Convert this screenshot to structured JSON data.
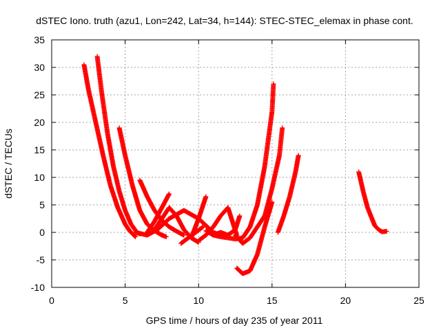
{
  "chart_data": {
    "type": "scatter",
    "title": "dSTEC Iono. truth (azu1, Lon=242, Lat=34, h=144): STEC-STEC_elemax in phase cont.",
    "xlabel": "GPS time / hours of day 235 of year 2011",
    "ylabel": "dSTEC  / TECUs",
    "xlim": [
      0,
      25
    ],
    "ylim": [
      -10,
      35
    ],
    "xticks": [
      "0",
      "5",
      "10",
      "15",
      "20",
      "25"
    ],
    "yticks": [
      "-10",
      "-5",
      "0",
      "5",
      "10",
      "15",
      "20",
      "25",
      "30",
      "35"
    ],
    "grid": true,
    "marker": "+",
    "color": "#ff0000",
    "series": [
      {
        "x": [
          2.2,
          2.5,
          3.0,
          3.5,
          4.0,
          4.5,
          5.0,
          5.3,
          5.7
        ],
        "y": [
          30.5,
          26,
          20,
          14,
          8.5,
          4.5,
          1.5,
          0.3,
          -0.8
        ]
      },
      {
        "x": [
          3.1,
          3.4,
          3.8,
          4.2,
          4.6,
          5.0,
          5.4,
          5.8,
          6.0
        ],
        "y": [
          32,
          25.5,
          18,
          12,
          7.5,
          4,
          1.5,
          0,
          -0.3
        ]
      },
      {
        "x": [
          4.6,
          5.0,
          5.5,
          6.0,
          6.5,
          7.0,
          7.5,
          7.8
        ],
        "y": [
          19,
          14,
          8.5,
          4,
          1.5,
          0.3,
          -0.5,
          -0.8
        ]
      },
      {
        "x": [
          6.0,
          6.5,
          7.0,
          7.5,
          8.0,
          8.5,
          9.0
        ],
        "y": [
          9.5,
          6.5,
          4,
          2.2,
          1,
          0.2,
          -0.5
        ]
      },
      {
        "x": [
          5.7,
          6.5,
          7.2,
          8.0,
          9.0,
          10.0,
          11.0,
          11.8
        ],
        "y": [
          0,
          -0.5,
          0.5,
          2.5,
          4,
          2.5,
          0,
          -0.8
        ]
      },
      {
        "x": [
          6.5,
          7.0,
          7.5,
          8.0
        ],
        "y": [
          0,
          2,
          4.5,
          7
        ]
      },
      {
        "x": [
          7.0,
          7.5,
          8.0,
          8.5,
          9.0,
          9.5,
          10.0
        ],
        "y": [
          0.5,
          2.5,
          4.5,
          3,
          0.5,
          -1,
          -1.8
        ]
      },
      {
        "x": [
          8.8,
          9.3,
          9.8,
          10.3
        ],
        "y": [
          -2,
          -1,
          0,
          1
        ]
      },
      {
        "x": [
          9.5,
          10.0,
          10.5
        ],
        "y": [
          -1,
          2.5,
          6.5
        ]
      },
      {
        "x": [
          10.0,
          10.5,
          11.0,
          11.5,
          12.0,
          12.3,
          12.6
        ],
        "y": [
          -1.5,
          -0.5,
          1,
          3,
          4.5,
          2,
          -0.5
        ]
      },
      {
        "x": [
          10.5,
          11.0,
          11.5,
          12.0,
          12.5,
          12.8
        ],
        "y": [
          0.3,
          -0.5,
          0,
          -0.5,
          0.5,
          3
        ]
      },
      {
        "x": [
          11.0,
          11.5,
          12.0,
          12.5,
          13.0,
          13.5,
          14.0,
          14.5,
          15.0,
          15.1
        ],
        "y": [
          -0.5,
          -0.8,
          -1,
          -1.2,
          -1,
          1,
          5,
          12,
          22,
          27
        ]
      },
      {
        "x": [
          12.5,
          13.0,
          13.5,
          14.0,
          14.5,
          15.0,
          15.5,
          15.7
        ],
        "y": [
          -0.5,
          -2,
          -1,
          1,
          3,
          8,
          14,
          19
        ]
      },
      {
        "x": [
          12.6,
          13.0,
          13.5,
          14.0,
          14.5,
          15.0
        ],
        "y": [
          -6.5,
          -7.5,
          -7,
          -4,
          1,
          5.5
        ]
      },
      {
        "x": [
          15.4,
          15.8,
          16.2,
          16.6,
          16.8
        ],
        "y": [
          0,
          3,
          6.5,
          11,
          14
        ]
      },
      {
        "x": [
          20.9,
          21.2,
          21.5,
          21.8,
          22.0,
          22.3,
          22.5,
          22.8
        ],
        "y": [
          11,
          7.5,
          4.5,
          2.5,
          1.2,
          0.4,
          0.1,
          0.2
        ]
      }
    ]
  }
}
